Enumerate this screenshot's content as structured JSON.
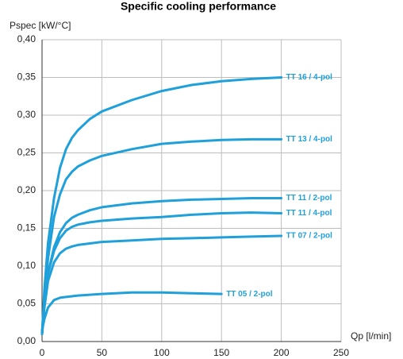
{
  "chart_data": {
    "type": "line",
    "title": "Specific cooling performance",
    "xlabel": "Qp [l/min]",
    "ylabel": "Pspec [kW/°C]",
    "xlim": [
      0,
      250
    ],
    "ylim": [
      0,
      0.4
    ],
    "x_ticks": [
      "0",
      "50",
      "100",
      "150",
      "200",
      "250"
    ],
    "y_ticks": [
      "0,00",
      "0,05",
      "0,10",
      "0,15",
      "0,20",
      "0,25",
      "0,30",
      "0,35",
      "0,40"
    ],
    "grid": true,
    "line_color": "#1fa0da",
    "series": [
      {
        "name": "TT 16 / 4-pol",
        "x": [
          0,
          2,
          5,
          10,
          15,
          20,
          25,
          30,
          40,
          50,
          75,
          100,
          125,
          150,
          175,
          200
        ],
        "y": [
          0.01,
          0.07,
          0.13,
          0.19,
          0.23,
          0.255,
          0.27,
          0.28,
          0.295,
          0.305,
          0.32,
          0.332,
          0.34,
          0.345,
          0.348,
          0.35
        ]
      },
      {
        "name": "TT 13 / 4-pol",
        "x": [
          0,
          2,
          5,
          10,
          15,
          20,
          25,
          30,
          40,
          50,
          75,
          100,
          125,
          150,
          175,
          200
        ],
        "y": [
          0.01,
          0.06,
          0.11,
          0.165,
          0.195,
          0.215,
          0.225,
          0.232,
          0.24,
          0.246,
          0.255,
          0.262,
          0.265,
          0.267,
          0.268,
          0.268
        ]
      },
      {
        "name": "TT 11 / 2-pol",
        "x": [
          0,
          2,
          5,
          10,
          15,
          20,
          25,
          30,
          40,
          50,
          75,
          100,
          125,
          150,
          175,
          200
        ],
        "y": [
          0.01,
          0.05,
          0.09,
          0.125,
          0.145,
          0.157,
          0.164,
          0.168,
          0.174,
          0.178,
          0.183,
          0.186,
          0.188,
          0.189,
          0.19,
          0.19
        ]
      },
      {
        "name": "TT 11 / 4-pol",
        "x": [
          0,
          2,
          5,
          10,
          15,
          20,
          25,
          30,
          40,
          50,
          75,
          100,
          125,
          150,
          175,
          200
        ],
        "y": [
          0.01,
          0.05,
          0.09,
          0.12,
          0.137,
          0.147,
          0.152,
          0.155,
          0.158,
          0.16,
          0.163,
          0.165,
          0.168,
          0.17,
          0.171,
          0.17
        ]
      },
      {
        "name": "TT 07 / 2-pol",
        "x": [
          0,
          2,
          5,
          10,
          15,
          20,
          25,
          30,
          40,
          50,
          75,
          100,
          125,
          150,
          175,
          200
        ],
        "y": [
          0.01,
          0.045,
          0.08,
          0.105,
          0.117,
          0.123,
          0.126,
          0.128,
          0.13,
          0.132,
          0.134,
          0.136,
          0.137,
          0.138,
          0.139,
          0.14
        ]
      },
      {
        "name": "TT 05 / 2-pol",
        "x": [
          0,
          2,
          5,
          10,
          15,
          20,
          30,
          50,
          75,
          100,
          125,
          150
        ],
        "y": [
          0.015,
          0.03,
          0.045,
          0.055,
          0.058,
          0.059,
          0.061,
          0.063,
          0.065,
          0.065,
          0.064,
          0.063
        ]
      }
    ]
  }
}
